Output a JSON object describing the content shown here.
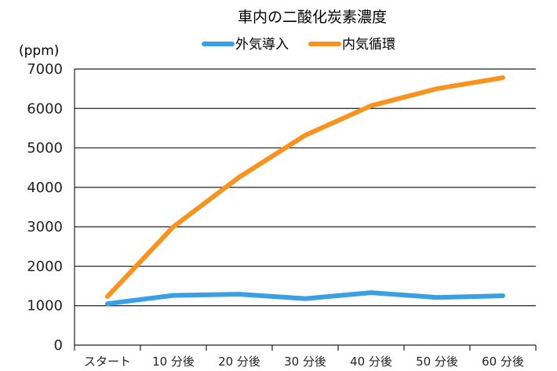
{
  "chart_data": {
    "type": "line",
    "title": "車内の二酸化炭素濃度",
    "ylabel": "(ppm)",
    "xlabel": "",
    "categories": [
      "スタート",
      "10 分後",
      "20 分後",
      "30 分後",
      "40 分後",
      "50 分後",
      "60 分後"
    ],
    "ylim": [
      0,
      7000
    ],
    "yticks": [
      0,
      1000,
      2000,
      3000,
      4000,
      5000,
      6000,
      7000
    ],
    "grid": true,
    "legend_position": "top",
    "series": [
      {
        "name": "外気導入",
        "color": "#3aa0e6",
        "values": [
          1050,
          1260,
          1290,
          1180,
          1330,
          1210,
          1250
        ]
      },
      {
        "name": "内気循環",
        "color": "#f7931e",
        "values": [
          1230,
          3000,
          4260,
          5320,
          6070,
          6500,
          6780
        ]
      }
    ]
  }
}
